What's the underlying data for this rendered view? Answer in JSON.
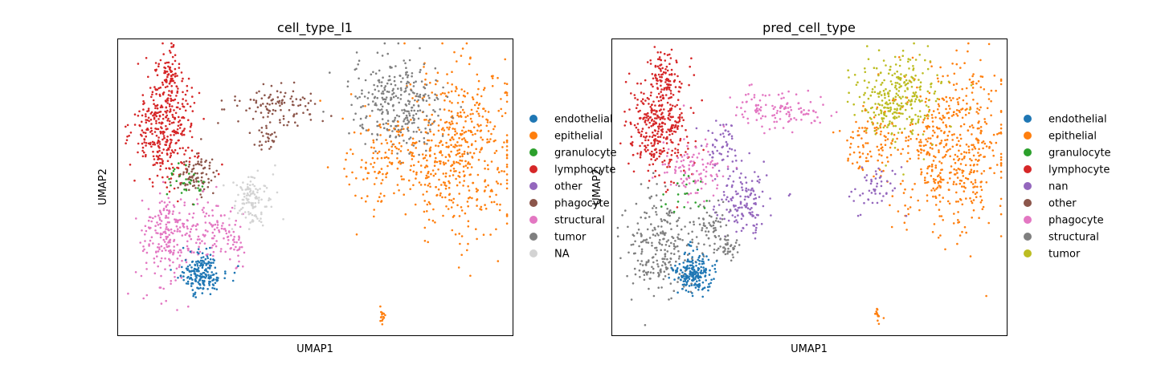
{
  "chart_data": [
    {
      "type": "scatter",
      "title": "cell_type_l1",
      "xlabel": "UMAP1",
      "ylabel": "UMAP2",
      "ticks": "none",
      "grid": false,
      "legend_position": "right-outside",
      "legend": [
        {
          "label": "endothelial",
          "color": "#1f77b4"
        },
        {
          "label": "epithelial",
          "color": "#ff7f0e"
        },
        {
          "label": "granulocyte",
          "color": "#2ca02c"
        },
        {
          "label": "lymphocyte",
          "color": "#d62728"
        },
        {
          "label": "other",
          "color": "#9467bd"
        },
        {
          "label": "phagocyte",
          "color": "#8c564b"
        },
        {
          "label": "structural",
          "color": "#e377c2"
        },
        {
          "label": "tumor",
          "color": "#7f7f7f"
        },
        {
          "label": "NA",
          "color": "#d3d3d3"
        }
      ],
      "clusters": [
        {
          "label": "epithelial",
          "x": 0.86,
          "y": 0.63,
          "sx": 0.07,
          "sy": 0.14,
          "n": 520
        },
        {
          "label": "tumor",
          "x": 0.71,
          "y": 0.78,
          "sx": 0.06,
          "sy": 0.08,
          "n": 300
        },
        {
          "label": "epithelial",
          "x": 0.67,
          "y": 0.58,
          "sx": 0.05,
          "sy": 0.08,
          "n": 120
        },
        {
          "label": "lymphocyte",
          "x": 0.12,
          "y": 0.7,
          "sx": 0.04,
          "sy": 0.09,
          "n": 360
        },
        {
          "label": "lymphocyte",
          "x": 0.13,
          "y": 0.88,
          "sx": 0.015,
          "sy": 0.05,
          "n": 80
        },
        {
          "label": "phagocyte",
          "x": 0.2,
          "y": 0.54,
          "sx": 0.025,
          "sy": 0.03,
          "n": 90
        },
        {
          "label": "granulocyte",
          "x": 0.17,
          "y": 0.51,
          "sx": 0.03,
          "sy": 0.03,
          "n": 30
        },
        {
          "label": "structural",
          "x": 0.13,
          "y": 0.33,
          "sx": 0.035,
          "sy": 0.08,
          "n": 220
        },
        {
          "label": "structural",
          "x": 0.24,
          "y": 0.36,
          "sx": 0.03,
          "sy": 0.05,
          "n": 90
        },
        {
          "label": "structural",
          "x": 0.3,
          "y": 0.3,
          "sx": 0.01,
          "sy": 0.03,
          "n": 30
        },
        {
          "label": "endothelial",
          "x": 0.21,
          "y": 0.21,
          "sx": 0.025,
          "sy": 0.035,
          "n": 200
        },
        {
          "label": "NA",
          "x": 0.34,
          "y": 0.46,
          "sx": 0.025,
          "sy": 0.05,
          "n": 120
        },
        {
          "label": "epithelial",
          "x": 0.67,
          "y": 0.07,
          "sx": 0.005,
          "sy": 0.015,
          "n": 15
        },
        {
          "label": "phagocyte",
          "x": 0.4,
          "y": 0.77,
          "sx": 0.06,
          "sy": 0.035,
          "n": 110
        },
        {
          "label": "phagocyte",
          "x": 0.38,
          "y": 0.66,
          "sx": 0.02,
          "sy": 0.02,
          "n": 25
        }
      ]
    },
    {
      "type": "scatter",
      "title": "pred_cell_type",
      "xlabel": "UMAP1",
      "ylabel": "UMAP2",
      "ticks": "none",
      "grid": false,
      "legend_position": "right-outside",
      "legend": [
        {
          "label": "endothelial",
          "color": "#1f77b4"
        },
        {
          "label": "epithelial",
          "color": "#ff7f0e"
        },
        {
          "label": "granulocyte",
          "color": "#2ca02c"
        },
        {
          "label": "lymphocyte",
          "color": "#d62728"
        },
        {
          "label": "nan",
          "color": "#9467bd"
        },
        {
          "label": "other",
          "color": "#8c564b"
        },
        {
          "label": "phagocyte",
          "color": "#e377c2"
        },
        {
          "label": "structural",
          "color": "#7f7f7f"
        },
        {
          "label": "tumor",
          "color": "#bcbd22"
        }
      ],
      "clusters": [
        {
          "label": "epithelial",
          "x": 0.86,
          "y": 0.63,
          "sx": 0.07,
          "sy": 0.14,
          "n": 520
        },
        {
          "label": "tumor",
          "x": 0.72,
          "y": 0.8,
          "sx": 0.05,
          "sy": 0.07,
          "n": 300
        },
        {
          "label": "epithelial",
          "x": 0.66,
          "y": 0.66,
          "sx": 0.04,
          "sy": 0.05,
          "n": 90
        },
        {
          "label": "nan",
          "x": 0.67,
          "y": 0.5,
          "sx": 0.03,
          "sy": 0.04,
          "n": 50
        },
        {
          "label": "lymphocyte",
          "x": 0.12,
          "y": 0.7,
          "sx": 0.04,
          "sy": 0.09,
          "n": 360
        },
        {
          "label": "lymphocyte",
          "x": 0.13,
          "y": 0.88,
          "sx": 0.015,
          "sy": 0.05,
          "n": 80
        },
        {
          "label": "phagocyte",
          "x": 0.21,
          "y": 0.56,
          "sx": 0.04,
          "sy": 0.05,
          "n": 110
        },
        {
          "label": "nan",
          "x": 0.33,
          "y": 0.46,
          "sx": 0.04,
          "sy": 0.06,
          "n": 140
        },
        {
          "label": "nan",
          "x": 0.28,
          "y": 0.64,
          "sx": 0.02,
          "sy": 0.05,
          "n": 50
        },
        {
          "label": "structural",
          "x": 0.12,
          "y": 0.3,
          "sx": 0.04,
          "sy": 0.09,
          "n": 240
        },
        {
          "label": "structural",
          "x": 0.25,
          "y": 0.36,
          "sx": 0.03,
          "sy": 0.04,
          "n": 70
        },
        {
          "label": "structural",
          "x": 0.3,
          "y": 0.3,
          "sx": 0.01,
          "sy": 0.02,
          "n": 30
        },
        {
          "label": "endothelial",
          "x": 0.21,
          "y": 0.21,
          "sx": 0.025,
          "sy": 0.035,
          "n": 200
        },
        {
          "label": "granulocyte",
          "x": 0.18,
          "y": 0.48,
          "sx": 0.03,
          "sy": 0.04,
          "n": 20
        },
        {
          "label": "epithelial",
          "x": 0.67,
          "y": 0.07,
          "sx": 0.005,
          "sy": 0.015,
          "n": 15
        },
        {
          "label": "phagocyte",
          "x": 0.42,
          "y": 0.76,
          "sx": 0.06,
          "sy": 0.035,
          "n": 120
        }
      ]
    }
  ]
}
